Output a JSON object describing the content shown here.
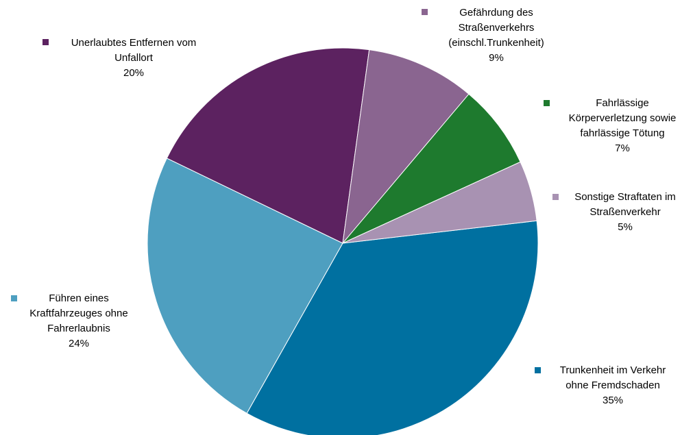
{
  "chart_data": {
    "type": "pie",
    "categories": [
      "Trunkenheit im Verkehr\nohne Fremdschaden",
      "Führen eines\nKraftfahrzeuges ohne\nFahrerlaubnis",
      "Unerlaubtes Entfernen vom\nUnfallort",
      "Gefährdung des\nStraßenverkehrs\n(einschl.Trunkenheit)",
      "Fahrlässige\nKörperverletzung sowie\nfahrlässige Tötung",
      "Sonstige Straftaten im\nStraßenverkehr"
    ],
    "values": [
      35,
      24,
      20,
      9,
      7,
      5
    ],
    "value_labels": [
      "35%",
      "24%",
      "20%",
      "9%",
      "7%",
      "5%"
    ],
    "colors": [
      "#0070a0",
      "#4e9fc0",
      "#5c2260",
      "#8a6590",
      "#1e7a2e",
      "#a892b2"
    ]
  }
}
